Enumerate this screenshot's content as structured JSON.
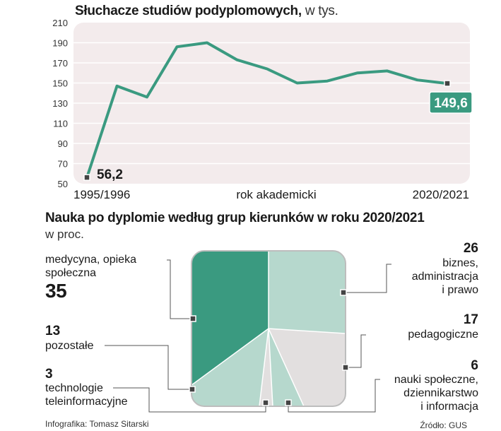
{
  "chart_data": [
    {
      "type": "line",
      "title": "Słuchacze studiów podyplomowych,",
      "unit": "w tys.",
      "xlabel": "rok akademicki",
      "x_first_label": "1995/1996",
      "x_last_label": "2020/2021",
      "ylim": [
        50,
        210
      ],
      "yticks": [
        210,
        190,
        170,
        150,
        130,
        110,
        90,
        70,
        50
      ],
      "values": [
        56.2,
        147,
        136,
        186,
        190,
        173,
        164,
        150,
        152,
        160,
        162,
        153,
        149.6
      ],
      "first_value_label": "56,2",
      "last_value_label": "149,6",
      "color": "#3a9a80"
    },
    {
      "type": "treemap",
      "title": "Nauka po dyplomie według grup kierunków w roku 2020/2021",
      "unit": "w proc.",
      "segments": [
        {
          "name": "medycyna, opieka społeczna",
          "value": 35,
          "color": "#3a9a80"
        },
        {
          "name": "biznes, administracja i prawo",
          "value": 26,
          "color": "#b6d8cd"
        },
        {
          "name": "pedagogiczne",
          "value": 17,
          "color": "#e2dfdf"
        },
        {
          "name": "nauki społeczne, dziennikarstwo i informacja",
          "value": 6,
          "color": "#b6d8cd"
        },
        {
          "name": "technologie teleinformacyjne",
          "value": 3,
          "color": "#e2dfdf"
        },
        {
          "name": "pozostałe",
          "value": 13,
          "color": "#b6d8cd"
        }
      ]
    }
  ],
  "labels": {
    "med_name1": "medycyna, opieka",
    "med_name2": "społeczna",
    "med_value": "35",
    "biz_value": "26",
    "biz_name1": "biznes,",
    "biz_name2": "administracja",
    "biz_name3": "i prawo",
    "ped_value": "17",
    "ped_name": "pedagogiczne",
    "pozo_value": "13",
    "pozo_name": "pozostałe",
    "tech_value": "3",
    "tech_name1": "technologie",
    "tech_name2": "teleinformacyjne",
    "nauki_value": "6",
    "nauki_name1": "nauki społeczne,",
    "nauki_name2": "dziennikarstwo",
    "nauki_name3": "i informacja"
  },
  "footer": {
    "author": "Infografika: Tomasz Sitarski",
    "source": "Źródło: GUS"
  }
}
